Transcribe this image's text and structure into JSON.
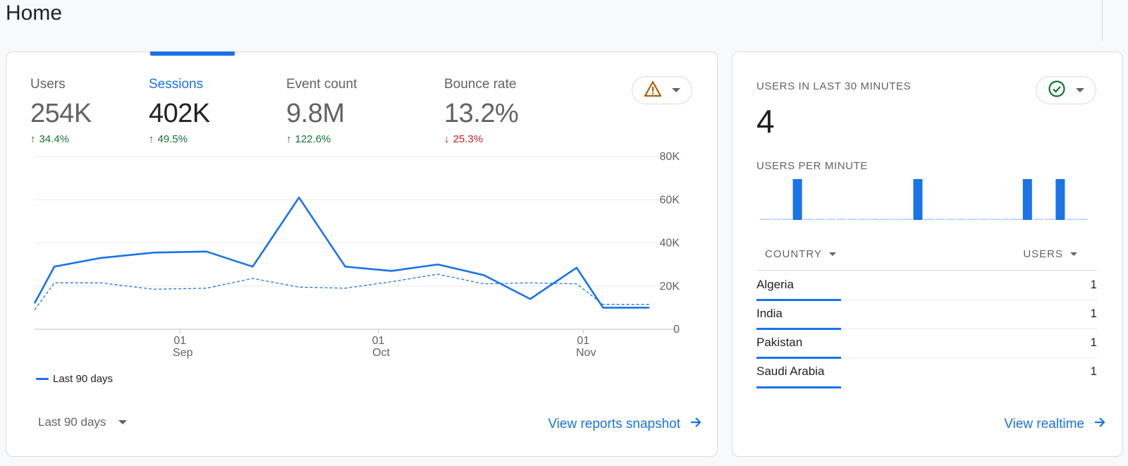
{
  "page": {
    "title": "Home"
  },
  "metrics": [
    {
      "label": "Users",
      "value": "254K",
      "change": "34.4%",
      "direction": "up"
    },
    {
      "label": "Sessions",
      "value": "402K",
      "change": "49.5%",
      "direction": "up",
      "active": true
    },
    {
      "label": "Event count",
      "value": "9.8M",
      "change": "122.6%",
      "direction": "up"
    },
    {
      "label": "Bounce rate",
      "value": "13.2%",
      "change": "25.3%",
      "direction": "down"
    }
  ],
  "icons": {
    "up": "arrow-up-icon",
    "down": "arrow-down-icon",
    "alert": "warning-triangle-icon",
    "status": "check-circle-icon",
    "link": "arrow-right-icon"
  },
  "colors": {
    "accent": "#1a73e8",
    "up": "#137333",
    "down": "#c5221f",
    "warning": "#b06000",
    "ok": "#137333"
  },
  "chart_data": {
    "type": "line",
    "y_ticks": [
      "80K",
      "60K",
      "40K",
      "20K",
      "0"
    ],
    "ylim": [
      0,
      80000
    ],
    "x_ticks": [
      {
        "day": "01",
        "month": "Sep"
      },
      {
        "day": "01",
        "month": "Oct"
      },
      {
        "day": "01",
        "month": "Nov"
      }
    ],
    "series": [
      {
        "name": "Last 90 days",
        "style": "solid",
        "x": [
          "2023-08-10",
          "2023-08-13",
          "2023-08-20",
          "2023-08-28",
          "2023-09-05",
          "2023-09-12",
          "2023-09-19",
          "2023-09-26",
          "2023-10-03",
          "2023-10-10",
          "2023-10-17",
          "2023-10-24",
          "2023-10-31",
          "2023-11-04",
          "2023-11-11"
        ],
        "values": [
          12000,
          29000,
          33000,
          35500,
          36000,
          29000,
          61000,
          29000,
          27000,
          30000,
          25000,
          14000,
          28500,
          10000,
          10000
        ]
      },
      {
        "style": "dashed",
        "x": [
          "2023-08-10",
          "2023-08-13",
          "2023-08-20",
          "2023-08-28",
          "2023-09-05",
          "2023-09-12",
          "2023-09-19",
          "2023-09-26",
          "2023-10-03",
          "2023-10-10",
          "2023-10-17",
          "2023-10-24",
          "2023-10-31",
          "2023-11-04",
          "2023-11-11"
        ],
        "values": [
          9000,
          21500,
          21500,
          18500,
          19000,
          23500,
          19500,
          19000,
          22000,
          25500,
          21000,
          21500,
          21000,
          11500,
          11500
        ]
      }
    ],
    "legend": "bottom-left",
    "grid": true
  },
  "footer_main": {
    "range": "Last 90 days",
    "link": "View reports snapshot"
  },
  "realtime": {
    "heading": "USERS IN LAST 30 MINUTES",
    "count": "4",
    "sub_heading": "USERS PER MINUTE",
    "bars": [
      0,
      0,
      0,
      1,
      0,
      0,
      0,
      0,
      0,
      0,
      0,
      0,
      0,
      0,
      1,
      0,
      0,
      0,
      0,
      0,
      0,
      0,
      0,
      0,
      1,
      0,
      0,
      1,
      0,
      0
    ],
    "table": {
      "col_country": "COUNTRY",
      "col_users": "USERS",
      "rows": [
        {
          "country": "Algeria",
          "users": "1"
        },
        {
          "country": "India",
          "users": "1"
        },
        {
          "country": "Pakistan",
          "users": "1"
        },
        {
          "country": "Saudi Arabia",
          "users": "1"
        }
      ]
    },
    "link": "View realtime"
  }
}
